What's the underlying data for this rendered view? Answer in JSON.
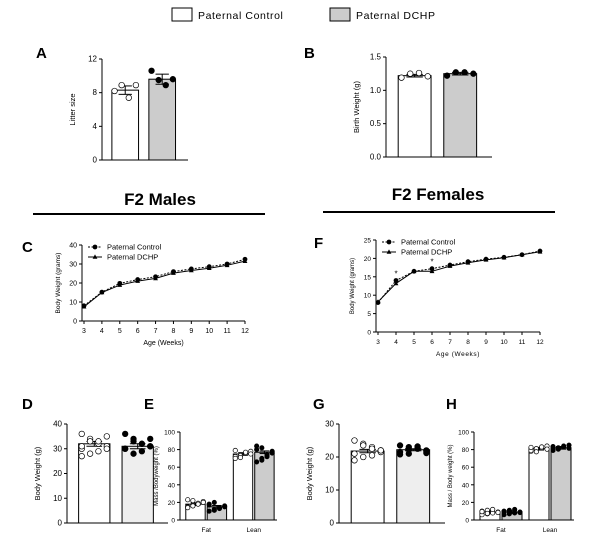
{
  "legend": {
    "control_label": "Paternal Control",
    "dchp_label": "Paternal DCHP",
    "control_color": "#ffffff",
    "dchp_color": "#cccccc"
  },
  "sections": {
    "males": "F2 Males",
    "females": "F2 Females"
  },
  "chart_data": [
    {
      "panel": "A",
      "type": "bar",
      "ylabel": "Litter size",
      "ylim": [
        0,
        12
      ],
      "yticks": [
        0,
        4,
        8,
        12
      ],
      "categories": [
        "Paternal Control",
        "Paternal DCHP"
      ],
      "values": [
        8.3,
        9.6
      ],
      "errors": [
        0.5,
        0.6
      ],
      "points": [
        [
          8.2,
          8.9,
          7.4,
          8.9
        ],
        [
          10.6,
          9.5,
          8.9,
          9.6
        ]
      ]
    },
    {
      "panel": "B",
      "type": "bar",
      "ylabel": "Birth Weight (g)",
      "ylim": [
        0,
        1.5
      ],
      "yticks": [
        0.0,
        0.5,
        1.0,
        1.5
      ],
      "categories": [
        "Paternal Control",
        "Paternal DCHP"
      ],
      "values": [
        1.22,
        1.25
      ],
      "errors": [
        0.02,
        0.02
      ],
      "points": [
        [
          1.19,
          1.25,
          1.26,
          1.21
        ],
        [
          1.22,
          1.27,
          1.27,
          1.25
        ]
      ]
    },
    {
      "panel": "C",
      "type": "line",
      "xlabel": "Age (Weeks)",
      "ylabel": "Body Weight (grams)",
      "ylim": [
        0,
        40
      ],
      "yticks": [
        0,
        10,
        20,
        30,
        40
      ],
      "x": [
        3,
        4,
        5,
        6,
        7,
        8,
        9,
        10,
        11,
        12
      ],
      "series": [
        {
          "name": "Paternal Control",
          "marker": "circle",
          "values": [
            8.0,
            15.2,
            19.8,
            21.8,
            23.3,
            26.0,
            27.4,
            28.6,
            30.0,
            32.5
          ]
        },
        {
          "name": "Paternal DCHP",
          "marker": "triangle",
          "values": [
            7.5,
            15.0,
            18.9,
            21.0,
            22.4,
            25.2,
            26.6,
            27.8,
            29.3,
            31.5
          ]
        }
      ]
    },
    {
      "panel": "F",
      "type": "line",
      "xlabel": "Age (Weeks)",
      "ylabel": "Body Weight (grams)",
      "ylim": [
        0,
        25
      ],
      "yticks": [
        0,
        5,
        10,
        15,
        20,
        25
      ],
      "x": [
        3,
        4,
        5,
        6,
        7,
        8,
        9,
        10,
        11,
        12
      ],
      "series": [
        {
          "name": "Paternal Control",
          "marker": "circle",
          "values": [
            8.0,
            14.0,
            16.5,
            17.2,
            18.2,
            19.1,
            19.8,
            20.3,
            21.0,
            22.0
          ]
        },
        {
          "name": "Paternal DCHP",
          "marker": "triangle",
          "values": [
            8.2,
            13.2,
            16.5,
            16.5,
            17.9,
            18.8,
            19.6,
            20.2,
            21.0,
            21.8
          ]
        }
      ],
      "annotations": [
        {
          "x": 4,
          "text": "*"
        },
        {
          "x": 6,
          "text": "*"
        }
      ]
    },
    {
      "panel": "D",
      "type": "bar",
      "ylabel": "Body Weight (g)",
      "ylim": [
        0,
        40
      ],
      "yticks": [
        0,
        10,
        20,
        30,
        40
      ],
      "categories": [
        "Paternal Control",
        "Paternal DCHP"
      ],
      "values": [
        32.0,
        31.0
      ],
      "errors": [
        1.0,
        1.0
      ],
      "points": [
        [
          36,
          34,
          32,
          31,
          30,
          33,
          29,
          35,
          31,
          28,
          33,
          30,
          27
        ],
        [
          36,
          34,
          32,
          31,
          30,
          33,
          29,
          34,
          30,
          28,
          32,
          31
        ]
      ]
    },
    {
      "panel": "E",
      "type": "bar",
      "ylabel": "Mass /Bodyweight (%)",
      "ylim": [
        0,
        100
      ],
      "yticks": [
        0,
        20,
        40,
        60,
        80,
        100
      ],
      "categories": [
        "Fat",
        "Lean"
      ],
      "series": [
        {
          "name": "Paternal Control",
          "values": [
            18,
            75
          ],
          "points": [
            [
              15,
              17,
              19,
              21,
              23,
              16,
              18,
              20,
              14,
              22
            ],
            [
              72,
              74,
              76,
              78,
              70,
              73,
              77,
              75,
              79,
              71
            ]
          ]
        },
        {
          "name": "Paternal DCHP",
          "values": [
            15,
            77
          ],
          "points": [
            [
              10,
              12,
              14,
              16,
              18,
              20,
              13,
              15,
              17,
              11
            ],
            [
              66,
              70,
              74,
              78,
              80,
              82,
              72,
              76,
              84,
              68
            ]
          ]
        }
      ]
    },
    {
      "panel": "G",
      "type": "bar",
      "ylabel": "Body Weight (g)",
      "ylim": [
        0,
        30
      ],
      "yticks": [
        0,
        10,
        20,
        30
      ],
      "categories": [
        "Paternal Control",
        "Paternal DCHP"
      ],
      "values": [
        21.8,
        22.2
      ],
      "errors": [
        0.5,
        0.3
      ],
      "points": [
        [
          25,
          24,
          23,
          22,
          21,
          20,
          22.5,
          21.5,
          19,
          23.5,
          20.5,
          22
        ],
        [
          23.5,
          23,
          22.5,
          22,
          21.5,
          21,
          22.8,
          21.8,
          20.8,
          22.2,
          23.2,
          21.2
        ]
      ]
    },
    {
      "panel": "H",
      "type": "bar",
      "ylabel": "Mass / Body weight (%)",
      "ylim": [
        0,
        100
      ],
      "yticks": [
        0,
        20,
        40,
        60,
        80,
        100
      ],
      "categories": [
        "Fat",
        "Lean"
      ],
      "series": [
        {
          "name": "Paternal Control",
          "values": [
            9,
            81
          ],
          "points": [
            [
              6,
              7,
              8,
              9,
              10,
              11,
              12,
              8.5,
              9.5,
              7.5
            ],
            [
              78,
              80,
              82,
              84,
              79,
              81,
              83,
              80.5,
              82.5,
              77.5
            ]
          ]
        },
        {
          "name": "Paternal DCHP",
          "values": [
            9,
            82
          ],
          "points": [
            [
              6,
              7,
              8,
              9,
              10,
              11,
              12,
              8.5,
              9.5,
              10.5
            ],
            [
              79,
              81,
              83,
              85,
              80,
              82,
              84,
              81.5,
              83.5,
              80.5
            ]
          ]
        }
      ]
    }
  ]
}
